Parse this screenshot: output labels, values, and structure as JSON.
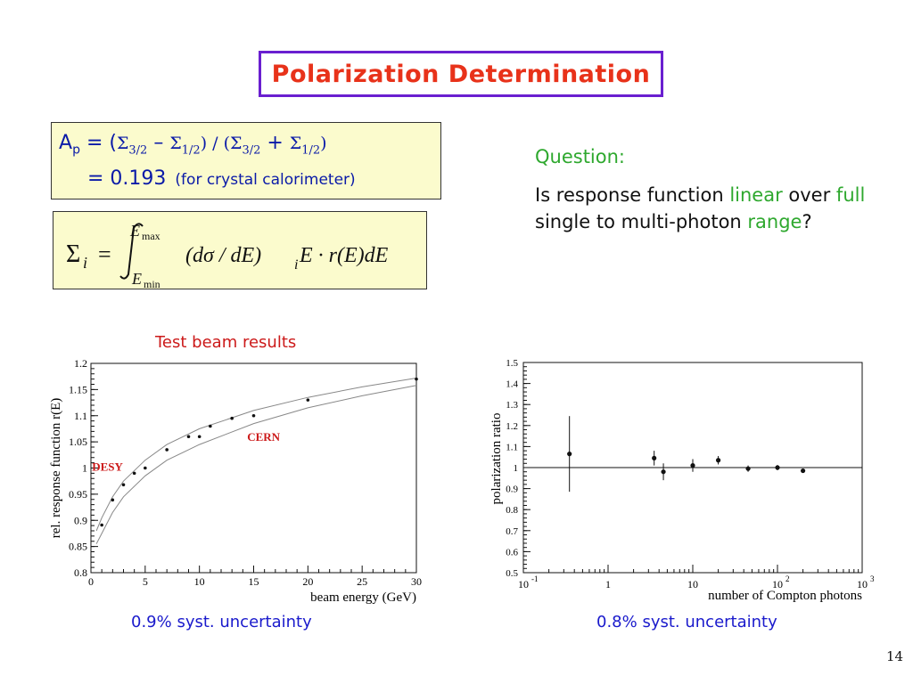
{
  "slide": {
    "title": "Polarization Determination",
    "formula": {
      "lhs": "A",
      "lhs_sub": "p",
      "eq": " = (",
      "sigma": "Σ",
      "sub32": "3/2",
      "sub12": "1/2",
      "minus": " – ",
      "slash": ") / (",
      "plus": " + ",
      "close": ")",
      "value": "= 0.193",
      "note": "(for crystal calorimeter)"
    },
    "integral": {
      "lhs": "Σ",
      "lhs_sub": "i",
      "eq": "=",
      "upper": "E",
      "upper_sub": "max",
      "lower": "E",
      "lower_sub": "min",
      "integrand_a": "(dσ / dE)",
      "integrand_sub": "i",
      "integrand_b": " E · r(E)dE"
    },
    "question": {
      "label": "Question:",
      "t1": "Is response function ",
      "g1": "linear",
      "t2": " over ",
      "g2": "full",
      "t3": " single to multi-photon ",
      "g3": "range",
      "t4": "?"
    },
    "left_caption_top": "Test beam results",
    "left_caption_bottom": "0.9% syst. uncertainty",
    "right_caption_bottom": "0.8% syst. uncertainty",
    "page_number": "14",
    "colors": {
      "title": "#e8321a",
      "frame": "#6a1fd0",
      "box_fill": "#fbfbcd",
      "blue_text": "#0a1aa8",
      "green": "#2ea82e"
    }
  },
  "chart_data": [
    {
      "type": "scatter",
      "xlabel": "beam energy (GeV)",
      "ylabel": "rel. response function r(E)",
      "xlim": [
        0,
        30
      ],
      "ylim": [
        0.8,
        1.2
      ],
      "xticks": [
        0,
        5,
        10,
        15,
        20,
        25,
        30
      ],
      "yticks": [
        0.8,
        0.85,
        0.9,
        0.95,
        1,
        1.05,
        1.1,
        1.15,
        1.2
      ],
      "annotations": [
        {
          "text": "DESY",
          "color": "#cc1a1a"
        },
        {
          "text": "CERN",
          "color": "#cc1a1a"
        }
      ],
      "points": [
        [
          1,
          0.891
        ],
        [
          2,
          0.939
        ],
        [
          3,
          0.968
        ],
        [
          4,
          0.99
        ],
        [
          5,
          1.0
        ],
        [
          7,
          1.035
        ],
        [
          9,
          1.06
        ],
        [
          10,
          1.06
        ],
        [
          11,
          1.08
        ],
        [
          13,
          1.095
        ],
        [
          15,
          1.1
        ],
        [
          20,
          1.13
        ],
        [
          30,
          1.17
        ]
      ],
      "band_upper": [
        [
          0.5,
          0.88
        ],
        [
          1,
          0.905
        ],
        [
          2,
          0.945
        ],
        [
          3,
          0.975
        ],
        [
          5,
          1.015
        ],
        [
          7,
          1.045
        ],
        [
          10,
          1.075
        ],
        [
          15,
          1.11
        ],
        [
          20,
          1.135
        ],
        [
          25,
          1.155
        ],
        [
          30,
          1.172
        ]
      ],
      "band_lower": [
        [
          0.5,
          0.855
        ],
        [
          1,
          0.875
        ],
        [
          2,
          0.915
        ],
        [
          3,
          0.945
        ],
        [
          5,
          0.985
        ],
        [
          7,
          1.015
        ],
        [
          10,
          1.045
        ],
        [
          15,
          1.085
        ],
        [
          20,
          1.115
        ],
        [
          25,
          1.138
        ],
        [
          30,
          1.158
        ]
      ]
    },
    {
      "type": "scatter",
      "xlabel": "number of Compton photons",
      "ylabel": "polarization ratio",
      "xscale": "log",
      "xlim": [
        0.1,
        1000
      ],
      "ylim": [
        0.5,
        1.5
      ],
      "xticks": [
        {
          "value": 0.1,
          "label": "10",
          "exp": "-1"
        },
        {
          "value": 1,
          "label": "1",
          "exp": ""
        },
        {
          "value": 10,
          "label": "10",
          "exp": ""
        },
        {
          "value": 100,
          "label": "10",
          "exp": "2"
        },
        {
          "value": 1000,
          "label": "10",
          "exp": "3"
        }
      ],
      "yticks": [
        0.5,
        0.6,
        0.7,
        0.8,
        0.9,
        1,
        1.1,
        1.2,
        1.3,
        1.4,
        1.5
      ],
      "reference_line": 1.0,
      "points": [
        {
          "x": 0.35,
          "y": 1.065,
          "err": 0.18
        },
        {
          "x": 3.5,
          "y": 1.045,
          "err": 0.035
        },
        {
          "x": 4.5,
          "y": 0.98,
          "err": 0.04
        },
        {
          "x": 10,
          "y": 1.01,
          "err": 0.03
        },
        {
          "x": 20,
          "y": 1.035,
          "err": 0.02
        },
        {
          "x": 45,
          "y": 0.995,
          "err": 0.015
        },
        {
          "x": 100,
          "y": 1.0,
          "err": 0.012
        },
        {
          "x": 200,
          "y": 0.985,
          "err": 0.01
        }
      ]
    }
  ]
}
